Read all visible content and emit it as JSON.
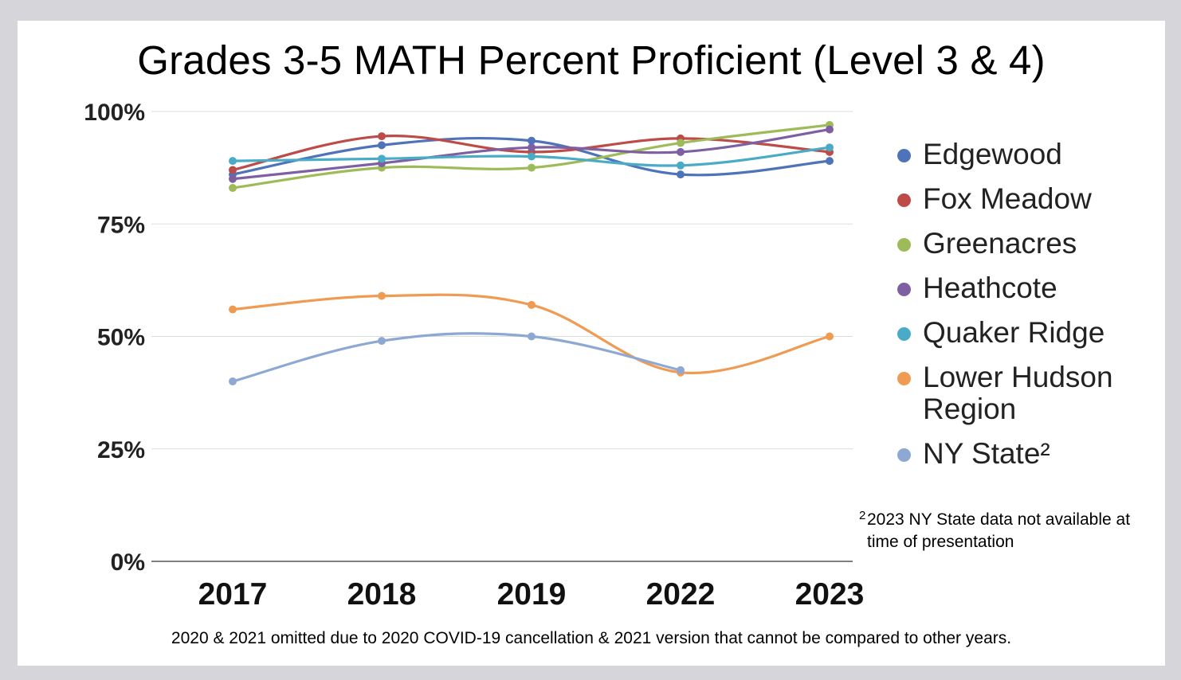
{
  "chart_data": {
    "type": "line",
    "title": "Grades 3-5 MATH Percent Proficient (Level 3 & 4)",
    "categories": [
      "2017",
      "2018",
      "2019",
      "2022",
      "2023"
    ],
    "ylim": [
      0,
      100
    ],
    "yticks": [
      "0%",
      "25%",
      "50%",
      "75%",
      "100%"
    ],
    "ytick_values": [
      0,
      25,
      50,
      75,
      100
    ],
    "grid": true,
    "legend_position": "right",
    "series": [
      {
        "name": "Edgewood",
        "color": "#4e73b9",
        "values": [
          86,
          92.5,
          93.5,
          86,
          89
        ]
      },
      {
        "name": "Fox Meadow",
        "color": "#bd4b48",
        "values": [
          87,
          94.5,
          91,
          94,
          91
        ]
      },
      {
        "name": "Greenacres",
        "color": "#9ebb59",
        "values": [
          83,
          87.5,
          87.5,
          93,
          97
        ]
      },
      {
        "name": "Heathcote",
        "color": "#7e60a2",
        "values": [
          85,
          88.5,
          92,
          91,
          96
        ]
      },
      {
        "name": "Quaker Ridge",
        "color": "#4aabc6",
        "values": [
          89,
          89.5,
          90,
          88,
          92
        ]
      },
      {
        "name": "Lower Hudson Region",
        "color": "#f09b53",
        "values": [
          56,
          59,
          57,
          42,
          50
        ]
      },
      {
        "name": "NY State²",
        "color": "#8ea8d4",
        "values": [
          40,
          49,
          50,
          42.5,
          null
        ]
      }
    ]
  },
  "footnote": {
    "marker": "2",
    "text": "2023 NY State data not available at time of presentation"
  },
  "caption": "2020 & 2021 omitted due to 2020 COVID-19 cancellation & 2021 version that cannot be compared to other years."
}
